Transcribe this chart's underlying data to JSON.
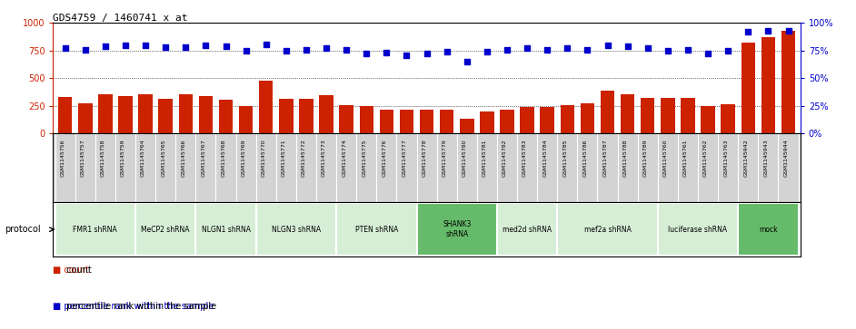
{
  "title": "GDS4759 / 1460741_x_at",
  "samples": [
    "GSM1145756",
    "GSM1145757",
    "GSM1145758",
    "GSM1145759",
    "GSM1145764",
    "GSM1145765",
    "GSM1145766",
    "GSM1145767",
    "GSM1145768",
    "GSM1145769",
    "GSM1145770",
    "GSM1145771",
    "GSM1145772",
    "GSM1145773",
    "GSM1145774",
    "GSM1145775",
    "GSM1145776",
    "GSM1145777",
    "GSM1145778",
    "GSM1145779",
    "GSM1145780",
    "GSM1145781",
    "GSM1145782",
    "GSM1145783",
    "GSM1145784",
    "GSM1145785",
    "GSM1145786",
    "GSM1145787",
    "GSM1145788",
    "GSM1145789",
    "GSM1145760",
    "GSM1145761",
    "GSM1145762",
    "GSM1145763",
    "GSM1145942",
    "GSM1145943",
    "GSM1145944"
  ],
  "counts": [
    330,
    270,
    350,
    340,
    350,
    315,
    350,
    340,
    305,
    250,
    475,
    315,
    310,
    345,
    255,
    250,
    210,
    210,
    215,
    215,
    135,
    200,
    215,
    235,
    235,
    255,
    270,
    390,
    350,
    320,
    320,
    320,
    250,
    260,
    820,
    870,
    930
  ],
  "percentiles": [
    77,
    76,
    79,
    80,
    80,
    78,
    78,
    80,
    79,
    75,
    81,
    75,
    76,
    77,
    76,
    72,
    73,
    71,
    72,
    74,
    65,
    74,
    76,
    77,
    76,
    77,
    76,
    80,
    79,
    77,
    75,
    76,
    72,
    75,
    92,
    93,
    93
  ],
  "protocol_groups": [
    {
      "label": "FMR1 shRNA",
      "start": 0,
      "end": 3,
      "color": "#d6eed6"
    },
    {
      "label": "MeCP2 shRNA",
      "start": 4,
      "end": 6,
      "color": "#d6eed6"
    },
    {
      "label": "NLGN1 shRNA",
      "start": 7,
      "end": 9,
      "color": "#d6eed6"
    },
    {
      "label": "NLGN3 shRNA",
      "start": 10,
      "end": 13,
      "color": "#d6eed6"
    },
    {
      "label": "PTEN shRNA",
      "start": 14,
      "end": 17,
      "color": "#d6eed6"
    },
    {
      "label": "SHANK3\nshRNA",
      "start": 18,
      "end": 21,
      "color": "#66bb6a"
    },
    {
      "label": "med2d shRNA",
      "start": 22,
      "end": 24,
      "color": "#d6eed6"
    },
    {
      "label": "mef2a shRNA",
      "start": 25,
      "end": 29,
      "color": "#d6eed6"
    },
    {
      "label": "luciferase shRNA",
      "start": 30,
      "end": 33,
      "color": "#d6eed6"
    },
    {
      "label": "mock",
      "start": 34,
      "end": 36,
      "color": "#66bb6a"
    }
  ],
  "bar_color": "#cc2200",
  "dot_color": "#0000cc",
  "left_ylim": [
    0,
    1000
  ],
  "right_ylim": [
    0,
    100
  ],
  "left_yticks": [
    0,
    250,
    500,
    750,
    1000
  ],
  "right_yticks": [
    0,
    25,
    50,
    75,
    100
  ],
  "bg_color": "#ffffff",
  "label_area_color": "#d3d3d3"
}
